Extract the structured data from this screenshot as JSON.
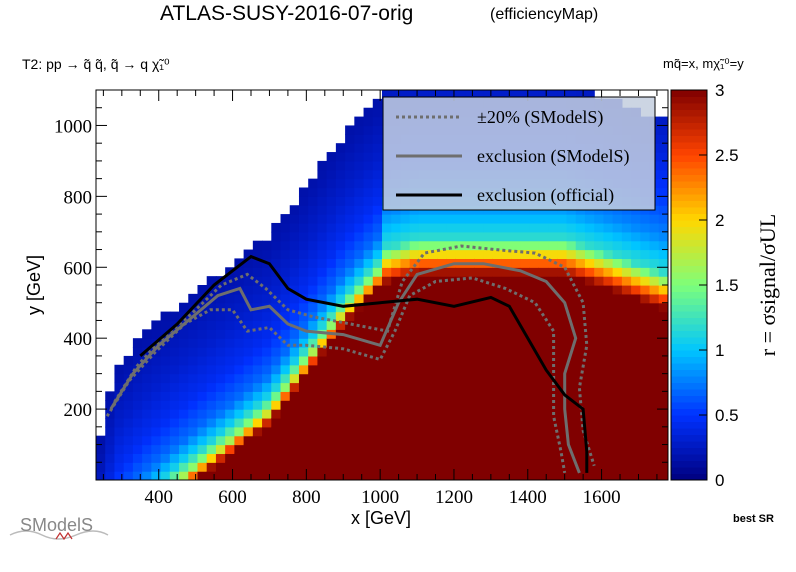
{
  "header": {
    "title": "ATLAS-SUSY-2016-07-orig",
    "subtitle": "(efficiencyMap)",
    "process": "T2: pp → q̃ q̃, q̃ → q χ̃₁⁰",
    "mass_convention": "mq̃=x, mχ̃₁⁰=y",
    "best_sr": "best SR",
    "logo_text": "SModelS"
  },
  "chart_data": {
    "type": "heatmap",
    "xlabel": "x [GeV]",
    "ylabel": "y [GeV]",
    "zlabel": "r = σsignal/σUL",
    "xlim": [
      230,
      1780
    ],
    "ylim": [
      0,
      1100
    ],
    "zlim": [
      0,
      3
    ],
    "x_ticks": [
      400,
      600,
      800,
      1000,
      1200,
      1400,
      1600
    ],
    "y_ticks": [
      200,
      400,
      600,
      800,
      1000
    ],
    "z_ticks": [
      0,
      0.5,
      1,
      1.5,
      2,
      2.5,
      3
    ],
    "colormap": [
      "#00007f",
      "#0031ff",
      "#00c5ff",
      "#7dff7a",
      "#ffd700",
      "#ff4400",
      "#800000"
    ],
    "grid": false,
    "legend_position": "top-right",
    "legend": [
      {
        "label": "±20% (SModelS)",
        "style": "dotted",
        "color": "#6e6e6e"
      },
      {
        "label": "exclusion (SModelS)",
        "style": "solid",
        "color": "#6e6e6e"
      },
      {
        "label": "exclusion (official)",
        "style": "solid",
        "color": "#000000"
      }
    ],
    "cell_size_gev": {
      "x": 25,
      "y": 25
    },
    "region_boundary_upper_y": [
      [
        230,
        40
      ],
      [
        280,
        300
      ],
      [
        350,
        390
      ],
      [
        450,
        480
      ],
      [
        550,
        560
      ],
      [
        650,
        640
      ],
      [
        700,
        680
      ],
      [
        800,
        820
      ],
      [
        900,
        960
      ],
      [
        1000,
        1070
      ],
      [
        1100,
        1100
      ],
      [
        1300,
        1100
      ],
      [
        1500,
        1100
      ],
      [
        1620,
        1060
      ],
      [
        1780,
        1000
      ]
    ],
    "band_pattern": [
      {
        "x_from": 230,
        "x_to": 1000,
        "y_band": [
          [
            -100,
            3.0
          ],
          [
            -60,
            1.6
          ],
          [
            -20,
            1.1
          ],
          [
            40,
            0.7
          ],
          [
            140,
            0.45
          ],
          [
            260,
            0.3
          ],
          [
            400,
            0.18
          ],
          [
            600,
            0.1
          ]
        ]
      },
      {
        "x_from": 1000,
        "x_to": 1780,
        "y_band": [
          [
            -100,
            3.0
          ],
          [
            0,
            1.2
          ],
          [
            100,
            0.8
          ],
          [
            200,
            0.55
          ],
          [
            350,
            0.35
          ],
          [
            500,
            0.2
          ],
          [
            700,
            0.1
          ]
        ]
      }
    ],
    "contours": {
      "official": [
        [
          350,
          350
        ],
        [
          450,
          440
        ],
        [
          550,
          550
        ],
        [
          600,
          590
        ],
        [
          650,
          630
        ],
        [
          700,
          610
        ],
        [
          750,
          540
        ],
        [
          800,
          510
        ],
        [
          900,
          490
        ],
        [
          1000,
          500
        ],
        [
          1100,
          510
        ],
        [
          1200,
          490
        ],
        [
          1300,
          515
        ],
        [
          1350,
          490
        ],
        [
          1400,
          400
        ],
        [
          1450,
          310
        ],
        [
          1500,
          240
        ],
        [
          1550,
          200
        ],
        [
          1560,
          80
        ],
        [
          1560,
          20
        ]
      ],
      "smodels": [
        [
          270,
          200
        ],
        [
          330,
          300
        ],
        [
          400,
          380
        ],
        [
          480,
          450
        ],
        [
          560,
          520
        ],
        [
          620,
          540
        ],
        [
          650,
          480
        ],
        [
          700,
          490
        ],
        [
          750,
          440
        ],
        [
          800,
          420
        ],
        [
          900,
          410
        ],
        [
          1000,
          380
        ],
        [
          1050,
          500
        ],
        [
          1100,
          580
        ],
        [
          1200,
          610
        ],
        [
          1280,
          610
        ],
        [
          1380,
          590
        ],
        [
          1450,
          560
        ],
        [
          1500,
          500
        ],
        [
          1530,
          400
        ],
        [
          1500,
          300
        ],
        [
          1500,
          200
        ],
        [
          1510,
          100
        ],
        [
          1540,
          20
        ]
      ],
      "smodels_minus20": [
        [
          260,
          180
        ],
        [
          320,
          280
        ],
        [
          390,
          360
        ],
        [
          470,
          440
        ],
        [
          540,
          480
        ],
        [
          600,
          480
        ],
        [
          640,
          420
        ],
        [
          700,
          430
        ],
        [
          750,
          380
        ],
        [
          800,
          380
        ],
        [
          900,
          370
        ],
        [
          1000,
          340
        ],
        [
          1040,
          420
        ],
        [
          1080,
          520
        ],
        [
          1150,
          560
        ],
        [
          1250,
          570
        ],
        [
          1340,
          540
        ],
        [
          1420,
          500
        ],
        [
          1470,
          420
        ],
        [
          1470,
          300
        ],
        [
          1470,
          180
        ],
        [
          1490,
          80
        ],
        [
          1500,
          20
        ]
      ],
      "smodels_plus20": [
        [
          280,
          220
        ],
        [
          340,
          320
        ],
        [
          410,
          400
        ],
        [
          490,
          470
        ],
        [
          570,
          550
        ],
        [
          640,
          580
        ],
        [
          690,
          540
        ],
        [
          750,
          480
        ],
        [
          820,
          460
        ],
        [
          920,
          440
        ],
        [
          1020,
          420
        ],
        [
          1060,
          560
        ],
        [
          1120,
          640
        ],
        [
          1220,
          660
        ],
        [
          1310,
          650
        ],
        [
          1420,
          640
        ],
        [
          1500,
          600
        ],
        [
          1550,
          500
        ],
        [
          1560,
          380
        ],
        [
          1540,
          260
        ],
        [
          1550,
          140
        ],
        [
          1580,
          40
        ]
      ]
    }
  }
}
